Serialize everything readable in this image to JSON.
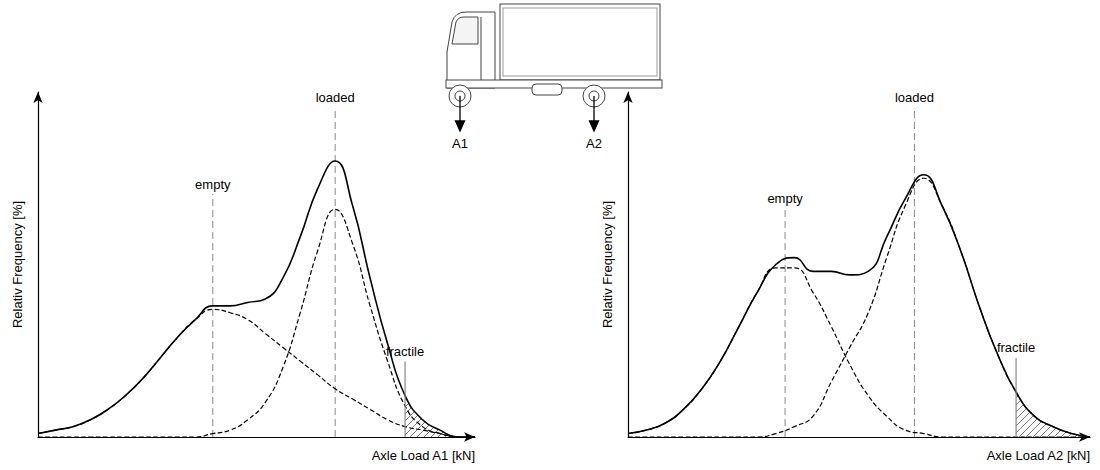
{
  "chart_data": [
    {
      "type": "line",
      "xlabel": "Axle Load A1 [kN]",
      "ylabel": "Relativ Frequency [%]",
      "xlim": [
        0,
        100
      ],
      "ylim": [
        0,
        100
      ],
      "tick_labels": false,
      "grid": false,
      "x": [
        0,
        4,
        8,
        12,
        16,
        20,
        24,
        28,
        32,
        36,
        40,
        44,
        48,
        52,
        56,
        60,
        64,
        68,
        72,
        76,
        80,
        84,
        88,
        92,
        96,
        100
      ],
      "series": [
        {
          "color": "#000000",
          "line_style": "solid",
          "values": [
            1,
            2,
            3,
            5,
            8,
            12,
            17,
            23,
            29,
            34,
            38,
            38,
            39,
            40,
            46,
            58,
            72,
            80,
            67,
            46,
            27,
            12,
            5,
            2,
            0,
            0
          ]
        },
        {
          "color": "#000000",
          "line_style": "dashed",
          "values": [
            1,
            2,
            3,
            5,
            8,
            12,
            17,
            23,
            29,
            34,
            37,
            36,
            34,
            30,
            26,
            22,
            18,
            14,
            11,
            8,
            5,
            3,
            2,
            1,
            0,
            0
          ]
        },
        {
          "color": "#000000",
          "line_style": "dashed",
          "values": [
            0,
            0,
            0,
            0,
            0,
            0,
            0,
            0,
            0,
            0,
            1,
            2,
            5,
            10,
            20,
            36,
            54,
            66,
            56,
            38,
            22,
            9,
            3,
            1,
            0,
            0
          ]
        }
      ],
      "annotations": [
        {
          "text": "empty",
          "x": 40,
          "line_style": "dashed"
        },
        {
          "text": "loaded",
          "x": 68,
          "line_style": "dashed"
        },
        {
          "text": "fractile",
          "x": 84,
          "line_style": "solid"
        }
      ]
    },
    {
      "type": "line",
      "xlabel": "Axle Load A2 [kN]",
      "ylabel": "Relativ Frequency [%]",
      "xlim": [
        0,
        100
      ],
      "ylim": [
        0,
        100
      ],
      "tick_labels": false,
      "grid": false,
      "x": [
        0,
        4,
        8,
        12,
        16,
        20,
        24,
        28,
        32,
        36,
        40,
        44,
        48,
        52,
        56,
        60,
        64,
        68,
        72,
        76,
        80,
        84,
        88,
        92,
        96,
        100
      ],
      "series": [
        {
          "color": "#000000",
          "line_style": "solid",
          "values": [
            1,
            2,
            4,
            8,
            14,
            22,
            32,
            42,
            50,
            52,
            48,
            48,
            47,
            48,
            58,
            69,
            76,
            67,
            54,
            38,
            24,
            13,
            6,
            3,
            1,
            0
          ]
        },
        {
          "color": "#000000",
          "line_style": "dashed",
          "values": [
            1,
            2,
            4,
            8,
            14,
            22,
            32,
            42,
            49,
            49,
            42,
            32,
            21,
            12,
            6,
            2,
            1,
            0,
            0,
            0,
            0,
            0,
            0,
            0,
            0,
            0
          ]
        },
        {
          "color": "#000000",
          "line_style": "dashed",
          "values": [
            0,
            0,
            0,
            0,
            0,
            0,
            0,
            0,
            1,
            3,
            6,
            16,
            26,
            36,
            52,
            67,
            75,
            67,
            54,
            38,
            24,
            13,
            6,
            3,
            1,
            0
          ]
        }
      ],
      "annotations": [
        {
          "text": "empty",
          "x": 34,
          "line_style": "dashed"
        },
        {
          "text": "loaded",
          "x": 62,
          "line_style": "dashed"
        },
        {
          "text": "fractile",
          "x": 84,
          "line_style": "solid"
        }
      ]
    }
  ],
  "axle_labels": [
    "A1",
    "A2"
  ]
}
